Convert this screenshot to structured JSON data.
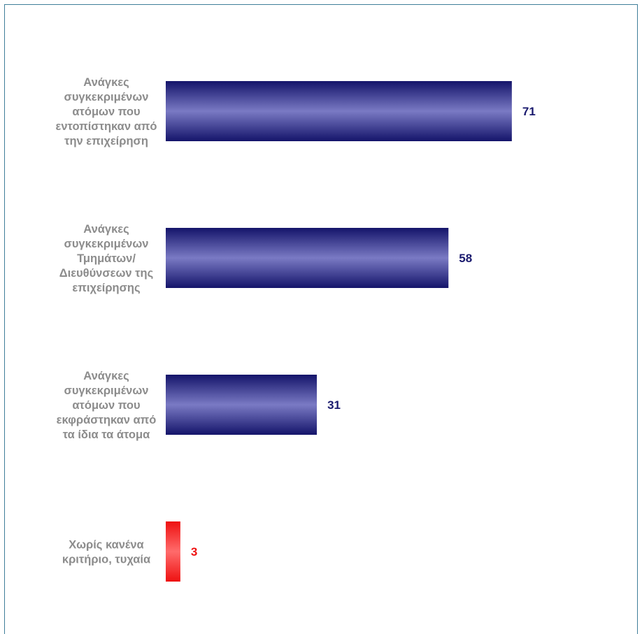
{
  "chart_data": {
    "type": "bar",
    "orientation": "horizontal",
    "categories": [
      "Ανάγκες συγκεκριμένων ατόμων που εντοπίστηκαν από την επιχείρηση",
      "Ανάγκες συγκεκριμένων Τμημάτων/ Διευθύνσεων της επιχείρησης",
      "Ανάγκες συγκεκριμένων ατόμων που εκφράστηκαν από τα ίδια τα άτομα",
      "Χωρίς κανένα κριτήριο, τυχαία"
    ],
    "category_lines": [
      [
        "Ανάγκες",
        "συγκεκριμένων",
        "ατόμων που",
        "εντοπίστηκαν από",
        "την επιχείρηση"
      ],
      [
        "Ανάγκες",
        "συγκεκριμένων",
        "Τμημάτων/",
        "Διευθύνσεων της",
        "επιχείρησης"
      ],
      [
        "Ανάγκες",
        "συγκεκριμένων",
        "ατόμων που",
        "εκφράστηκαν από",
        "τα ίδια τα άτομα"
      ],
      [
        "Χωρίς κανένα",
        "κριτήριο, τυχαία"
      ]
    ],
    "values": [
      71,
      58,
      31,
      3
    ],
    "value_labels": [
      "71",
      "58",
      "31",
      "3"
    ],
    "title": "",
    "xlabel": "",
    "ylabel": "",
    "xlim": [
      0,
      100
    ],
    "grid": false,
    "legend": "none",
    "bar_colors": [
      "#7a7ac4",
      "#7a7ac4",
      "#7a7ac4",
      "#ff6b6b"
    ],
    "bar_edge_colors": [
      "#14146a",
      "#14146a",
      "#14146a",
      "#ee1111"
    ],
    "value_label_colors": [
      "#1a1a6e",
      "#1a1a6e",
      "#1a1a6e",
      "#ee1111"
    ]
  },
  "colors": {
    "frame_border": "#3f7f9a",
    "category_label": "#8c8c8c"
  }
}
